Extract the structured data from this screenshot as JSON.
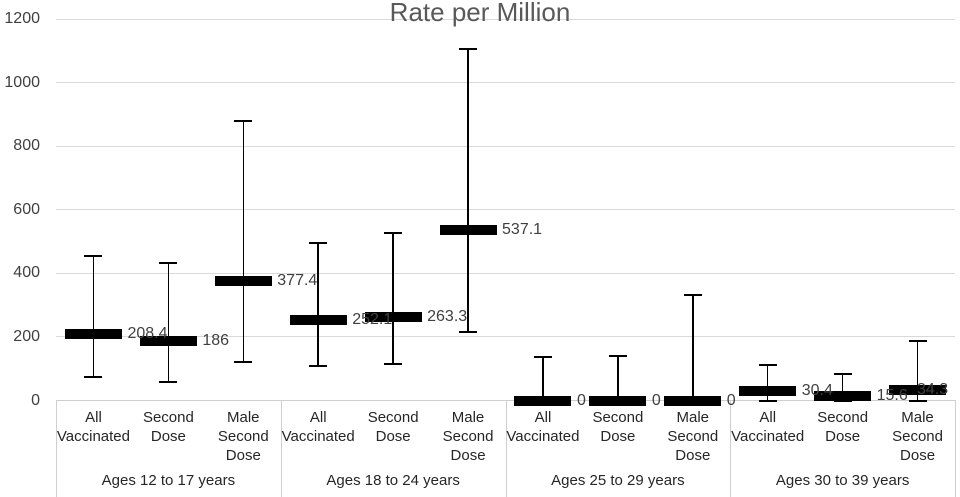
{
  "title": "Rate per Million",
  "colors": {
    "bar": "#000000",
    "whisker": "#000000",
    "gridline": "#d9d9d9",
    "tick_text": "#404040",
    "title_text": "#595959",
    "data_label_text": "#404040",
    "category_text": "#262626",
    "table_border": "#cfcfcf",
    "background": "#ffffff"
  },
  "chart_data": {
    "type": "bar",
    "subtype": "point-estimate bars with error whiskers (confidence intervals)",
    "title": "Rate per Million",
    "xlabel": "",
    "ylabel": "",
    "ylim": [
      0,
      1200
    ],
    "yticks": [
      0,
      200,
      400,
      600,
      800,
      1000,
      1200
    ],
    "grid": true,
    "legend": "none",
    "series_per_group": [
      "All Vaccinated",
      "Second Dose",
      "Male Second Dose"
    ],
    "groups": [
      {
        "label": "Ages 12 to 17 years",
        "points": [
          {
            "series": "All Vaccinated",
            "series_lines": [
              "All",
              "Vaccinated"
            ],
            "value": 208.4,
            "label": "208.4",
            "ci_low": 74,
            "ci_high": 455
          },
          {
            "series": "Second Dose",
            "series_lines": [
              "Second",
              "Dose"
            ],
            "value": 186,
            "label": "186",
            "ci_low": 57,
            "ci_high": 433
          },
          {
            "series": "Male Second Dose",
            "series_lines": [
              "Male",
              "Second",
              "Dose"
            ],
            "value": 377.4,
            "label": "377.4",
            "ci_low": 121,
            "ci_high": 880
          }
        ]
      },
      {
        "label": "Ages 18 to 24 years",
        "points": [
          {
            "series": "All Vaccinated",
            "series_lines": [
              "All",
              "Vaccinated"
            ],
            "value": 252.1,
            "label": "252.1",
            "ci_low": 109,
            "ci_high": 496
          },
          {
            "series": "Second Dose",
            "series_lines": [
              "Second",
              "Dose"
            ],
            "value": 263.3,
            "label": "263.3",
            "ci_low": 115,
            "ci_high": 528
          },
          {
            "series": "Male Second Dose",
            "series_lines": [
              "Male",
              "Second",
              "Dose"
            ],
            "value": 537.1,
            "label": "537.1",
            "ci_low": 216,
            "ci_high": 1106
          }
        ]
      },
      {
        "label": "Ages 25 to 29 years",
        "points": [
          {
            "series": "All Vaccinated",
            "series_lines": [
              "All",
              "Vaccinated"
            ],
            "value": 0,
            "label": "0",
            "ci_low": 0,
            "ci_high": 137
          },
          {
            "series": "Second Dose",
            "series_lines": [
              "Second",
              "Dose"
            ],
            "value": 0,
            "label": "0",
            "ci_low": 0,
            "ci_high": 140
          },
          {
            "series": "Male Second Dose",
            "series_lines": [
              "Male",
              "Second",
              "Dose"
            ],
            "value": 0,
            "label": "0",
            "ci_low": 0,
            "ci_high": 332
          }
        ]
      },
      {
        "label": "Ages 30 to 39 years",
        "points": [
          {
            "series": "All Vaccinated",
            "series_lines": [
              "All",
              "Vaccinated"
            ],
            "value": 30.4,
            "label": "30.4",
            "ci_low": 0,
            "ci_high": 112
          },
          {
            "series": "Second Dose",
            "series_lines": [
              "Second",
              "Dose"
            ],
            "value": 15.6,
            "label": "15.6",
            "ci_low": 0,
            "ci_high": 84
          },
          {
            "series": "Male Second Dose",
            "series_lines": [
              "Male",
              "Second",
              "Dose"
            ],
            "value": 34.3,
            "label": "34.3",
            "ci_low": 0,
            "ci_high": 187
          }
        ]
      }
    ]
  }
}
